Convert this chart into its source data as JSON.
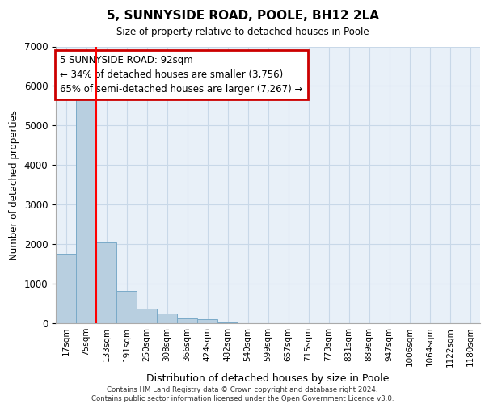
{
  "title": "5, SUNNYSIDE ROAD, POOLE, BH12 2LA",
  "subtitle": "Size of property relative to detached houses in Poole",
  "xlabel": "Distribution of detached houses by size in Poole",
  "ylabel": "Number of detached properties",
  "categories": [
    "17sqm",
    "75sqm",
    "133sqm",
    "191sqm",
    "250sqm",
    "308sqm",
    "366sqm",
    "424sqm",
    "482sqm",
    "540sqm",
    "599sqm",
    "657sqm",
    "715sqm",
    "773sqm",
    "831sqm",
    "889sqm",
    "947sqm",
    "1006sqm",
    "1064sqm",
    "1122sqm",
    "1180sqm"
  ],
  "values": [
    1750,
    5750,
    2050,
    820,
    370,
    240,
    130,
    100,
    30,
    5,
    0,
    5,
    0,
    0,
    0,
    0,
    0,
    0,
    0,
    0,
    0
  ],
  "bar_color": "#b8cfe0",
  "bar_edge_color": "#7aaac8",
  "red_line_x": 1.5,
  "annotation_text_line1": "5 SUNNYSIDE ROAD: 92sqm",
  "annotation_text_line2": "← 34% of detached houses are smaller (3,756)",
  "annotation_text_line3": "65% of semi-detached houses are larger (7,267) →",
  "annotation_box_color": "#ffffff",
  "annotation_box_edge_color": "#cc0000",
  "ylim": [
    0,
    7000
  ],
  "yticks": [
    0,
    1000,
    2000,
    3000,
    4000,
    5000,
    6000,
    7000
  ],
  "grid_color": "#c8d8e8",
  "background_color": "#e8f0f8",
  "footer_line1": "Contains HM Land Registry data © Crown copyright and database right 2024.",
  "footer_line2": "Contains public sector information licensed under the Open Government Licence v3.0."
}
